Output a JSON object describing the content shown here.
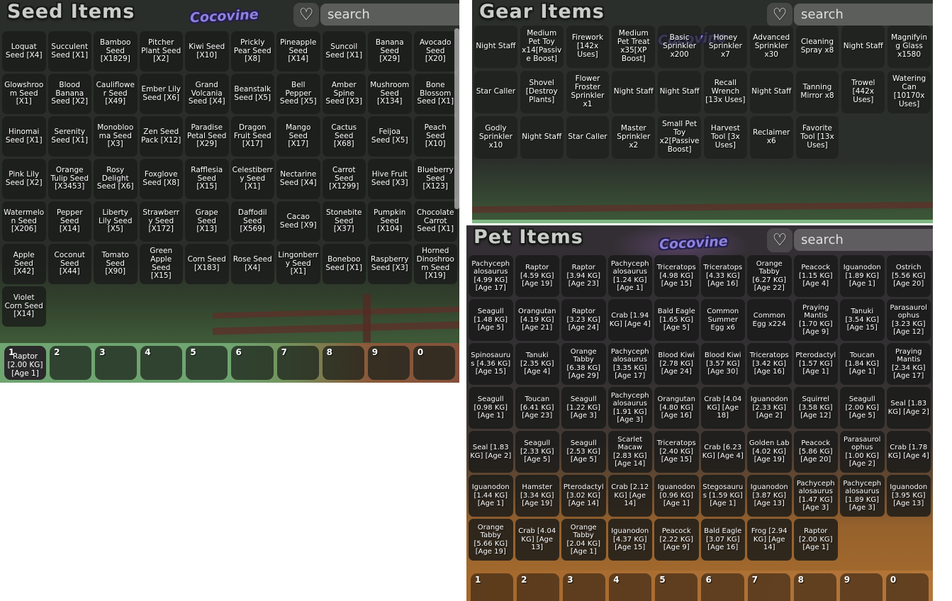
{
  "icons": {
    "heart": "♡"
  },
  "colors": {
    "watermark_purple": "#8d82dd",
    "panel_overlay": "#2b2f2b",
    "tile_text": "#ffffff",
    "hotbar_grass_green": "#6fa571",
    "hotbar_dirt_orange": "#a86d2e"
  },
  "seed_panel": {
    "title": "Seed Items",
    "watermark": "Cocovine",
    "search_placeholder": "search",
    "items": [
      "Loquat Seed [X4]",
      "Succulent Seed [X1]",
      "Bamboo Seed [X1829]",
      "Pitcher Plant Seed [X2]",
      "Kiwi Seed [X10]",
      "Prickly Pear Seed [X8]",
      "Pineapple Seed [X14]",
      "Suncoil Seed [X1]",
      "Banana Seed [X29]",
      "Avocado Seed [X20]",
      "Glowshroom Seed [X1]",
      "Blood Banana Seed [X2]",
      "Cauliflower Seed [X49]",
      "Ember Lily Seed [X6]",
      "Grand Volcania Seed [X4]",
      "Beanstalk Seed [X5]",
      "Bell Pepper Seed [X5]",
      "Amber Spine Seed [X3]",
      "Mushroom Seed [X134]",
      "Bone Blossom Seed [X1]",
      "Hinomai Seed [X1]",
      "Serenity Seed [X1]",
      "Monoblooma Seed [X3]",
      "Zen Seed Pack [X12]",
      "Paradise Petal Seed [X29]",
      "Dragon Fruit Seed [X17]",
      "Mango Seed [X17]",
      "Cactus Seed [X68]",
      "Feijoa Seed [X5]",
      "Peach Seed [X10]",
      "Pink Lily Seed [X2]",
      "Orange Tulip Seed [X3453]",
      "Rosy Delight Seed [X6]",
      "Foxglove Seed [X8]",
      "Rafflesia Seed [X15]",
      "Celestiberry Seed [X1]",
      "Nectarine Seed [X4]",
      "Carrot Seed [X1299]",
      "Hive Fruit Seed [X3]",
      "Blueberry Seed [X123]",
      "Watermelon Seed [X206]",
      "Pepper Seed [X14]",
      "Liberty Lily Seed [X5]",
      "Strawberry Seed [X172]",
      "Grape Seed [X13]",
      "Daffodil Seed [X569]",
      "Cacao Seed [X9]",
      "Stonebite Seed [X37]",
      "Pumpkin Seed [X104]",
      "Chocolate Carrot Seed [X1]",
      "Apple Seed [X42]",
      "Coconut Seed [X44]",
      "Tomato Seed [X90]",
      "Green Apple Seed [X15]",
      "Corn Seed [X183]",
      "Rose Seed [X4]",
      "Lingonberry Seed [X1]",
      "Boneboo Seed [X1]",
      "Raspberry Seed [X3]",
      "Horned Dinoshroom Seed [X19]",
      "Violet Corn Seed [X14]"
    ],
    "hotbar": [
      {
        "key": "1",
        "item": "Raptor [2.00 KG] [Age 1]"
      },
      {
        "key": "2",
        "item": ""
      },
      {
        "key": "3",
        "item": ""
      },
      {
        "key": "4",
        "item": ""
      },
      {
        "key": "5",
        "item": ""
      },
      {
        "key": "6",
        "item": ""
      },
      {
        "key": "7",
        "item": ""
      },
      {
        "key": "8",
        "item": ""
      },
      {
        "key": "9",
        "item": ""
      },
      {
        "key": "0",
        "item": ""
      }
    ]
  },
  "gear_panel": {
    "title": "Gear Items",
    "watermark": "Cocovine",
    "search_placeholder": "search",
    "items": [
      "Night Staff",
      "Medium Pet Toy x14[Passive Boost]",
      "Firework [142x Uses]",
      "Medium Pet Treat x35[XP Boost]",
      "Basic Sprinkler x200",
      "Honey Sprinkler x7",
      "Advanced Sprinkler x30",
      "Cleaning Spray x8",
      "Night Staff",
      "Magnifying Glass x1580",
      "Star Caller",
      "Shovel [Destroy Plants]",
      "Flower Froster Sprinkler x1",
      "Night Staff",
      "Night Staff",
      "Recall Wrench [13x Uses]",
      "Night Staff",
      "Tanning Mirror x8",
      "Trowel [442x Uses]",
      "Watering Can [10170x Uses]",
      "Godly Sprinkler x10",
      "Night Staff",
      "Star Caller",
      "Master Sprinkler x2",
      "Small Pet Toy x2[Passive Boost]",
      "Harvest Tool [3x Uses]",
      "Reclaimer x6",
      "Favorite Tool [13x Uses]"
    ]
  },
  "pet_panel": {
    "title": "Pet Items",
    "watermark": "Cocovine",
    "search_placeholder": "search",
    "items": [
      "Pachycephalosaurus [4.99 KG] [Age 17]",
      "Raptor [4.59 KG] [Age 19]",
      "Raptor [3.94 KG] [Age 23]",
      "Pachycephalosaurus [1.24 KG] [Age 1]",
      "Triceratops [4.98 KG] [Age 15]",
      "Triceratops [4.33 KG] [Age 16]",
      "Orange Tabby [6.27 KG] [Age 22]",
      "Peacock [1.15 KG] [Age 4]",
      "Iguanodon [1.89 KG] [Age 1]",
      "Ostrich [5.56 KG] [Age 20]",
      "Seagull [1.48 KG] [Age 5]",
      "Orangutan [4.19 KG] [Age 21]",
      "Raptor [3.23 KG] [Age 24]",
      "Crab [1.94 KG] [Age 4]",
      "Bald Eagle [1.65 KG] [Age 5]",
      "Common Summer Egg x6",
      "Common Egg x224",
      "Praying Mantis [1.70 KG] [Age 9]",
      "Tanuki [3.54 KG] [Age 15]",
      "Parasaurolophus [3.23 KG] [Age 12]",
      "Spinosaurus [4.36 KG] [Age 15]",
      "Tanuki [2.35 KG] [Age 4]",
      "Orange Tabby [6.38 KG] [Age 29]",
      "Pachycephalosaurus [3.35 KG] [Age 17]",
      "Blood Kiwi [2.78 KG] [Age 24]",
      "Blood Kiwi [3.57 KG] [Age 30]",
      "Triceratops [3.42 KG] [Age 16]",
      "Pterodactyl [1.57 KG] [Age 1]",
      "Toucan [1.84 KG] [Age 1]",
      "Praying Mantis [2.34 KG] [Age 17]",
      "Seagull [0.98 KG] [Age 1]",
      "Toucan [6.41 KG] [Age 23]",
      "Seagull [1.22 KG] [Age 3]",
      "Pachycephalosaurus [1.91 KG] [Age 3]",
      "Orangutan [4.80 KG] [Age 16]",
      "Crab [4.04 KG] [Age 18]",
      "Iguanodon [2.33 KG] [Age 2]",
      "Squirrel [3.58 KG] [Age 12]",
      "Seagull [2.00 KG] [Age 5]",
      "Seal [1.83 KG] [Age 2]",
      "Seal [1.83 KG] [Age 2]",
      "Seagull [2.33 KG] [Age 5]",
      "Seagull [2.53 KG] [Age 5]",
      "Scarlet Macaw [2.83 KG] [Age 14]",
      "Triceratops [2.40 KG] [Age 15]",
      "Crab [6.23 KG] [Age 4]",
      "Golden Lab [4.02 KG] [Age 19]",
      "Peacock [5.86 KG] [Age 20]",
      "Parasaurolophus [1.00 KG] [Age 2]",
      "Crab [1.78 KG] [Age 4]",
      "Iguanodon [1.44 KG] [Age 1]",
      "Hamster [3.34 KG] [Age 19]",
      "Pterodactyl [3.02 KG] [Age 14]",
      "Crab [2.12 KG] [Age 14]",
      "Iguanodon [0.96 KG] [Age 1]",
      "Stegosaurus [1.59 KG] [Age 1]",
      "Iguanodon [3.87 KG] [Age 13]",
      "Pachycephalosaurus [1.47 KG] [Age 3]",
      "Pachycephalosaurus [1.89 KG] [Age 3]",
      "Iguanodon [3.95 KG] [Age 13]",
      "Orange Tabby [5.66 KG] [Age 19]",
      "Crab [4.04 KG] [Age 13]",
      "Orange Tabby [2.04 KG] [Age 1]",
      "Iguanodon [4.37 KG] [Age 15]",
      "Peacock [2.22 KG] [Age 9]",
      "Bald Eagle [3.07 KG] [Age 16]",
      "Frog [2.94 KG] [Age 14]",
      "Raptor [2.00 KG] [Age 1]"
    ],
    "hotbar": [
      {
        "key": "1",
        "item": ""
      },
      {
        "key": "2",
        "item": ""
      },
      {
        "key": "3",
        "item": ""
      },
      {
        "key": "4",
        "item": ""
      },
      {
        "key": "5",
        "item": ""
      },
      {
        "key": "6",
        "item": ""
      },
      {
        "key": "7",
        "item": ""
      },
      {
        "key": "8",
        "item": ""
      },
      {
        "key": "9",
        "item": ""
      },
      {
        "key": "0",
        "item": ""
      }
    ]
  }
}
